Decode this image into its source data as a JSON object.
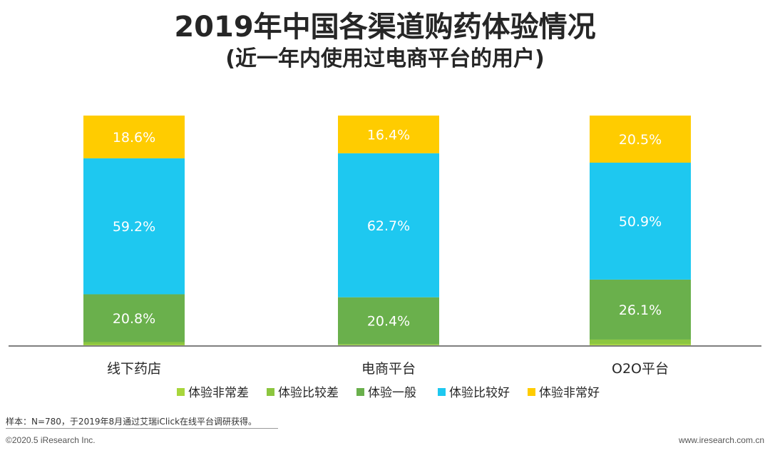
{
  "chart_data": {
    "type": "stacked-bar",
    "title": "2019年中国各渠道购药体验情况",
    "subtitle": "(近一年内使用过电商平台的用户)",
    "categories": [
      "线下药店",
      "电商平台",
      "O2O平台"
    ],
    "series": [
      {
        "name": "体验非常差",
        "color": "#a8d63c",
        "values": [
          0.3,
          0.1,
          0.5
        ],
        "labels": [
          "",
          "",
          ""
        ]
      },
      {
        "name": "体验比较差",
        "color": "#8cc63f",
        "values": [
          1.1,
          0.4,
          2.0
        ],
        "labels": [
          "",
          "",
          ""
        ]
      },
      {
        "name": "体验一般",
        "color": "#6ab04c",
        "values": [
          20.8,
          20.4,
          26.1
        ],
        "labels": [
          "20.8%",
          "20.4%",
          "26.1%"
        ]
      },
      {
        "name": "体验比较好",
        "color": "#1ec8f0",
        "values": [
          59.2,
          62.7,
          50.9
        ],
        "labels": [
          "59.2%",
          "62.7%",
          "50.9%"
        ]
      },
      {
        "name": "体验非常好",
        "color": "#ffcc00",
        "values": [
          18.6,
          16.4,
          20.5
        ],
        "labels": [
          "18.6%",
          "16.4%",
          "20.5%"
        ]
      }
    ],
    "ylim": [
      0,
      100
    ],
    "legend_position": "bottom",
    "grid": false
  },
  "footer": {
    "source": "样本：N=780，于2019年8月通过艾瑞iClick在线平台调研获得。",
    "copyright": "©2020.5 iResearch Inc.",
    "website": "www.iresearch.com.cn"
  }
}
